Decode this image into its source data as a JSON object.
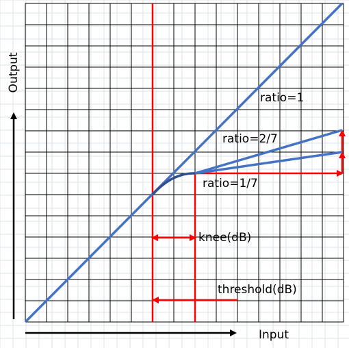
{
  "labels": {
    "ratio_1": "ratio=1",
    "ratio_2_7": "ratio=2/7",
    "ratio_1_7": "ratio=1/7",
    "knee": "knee(dB)",
    "threshold": "threshold(dB)",
    "x_axis": "Input",
    "y_axis": "Output"
  }
}
